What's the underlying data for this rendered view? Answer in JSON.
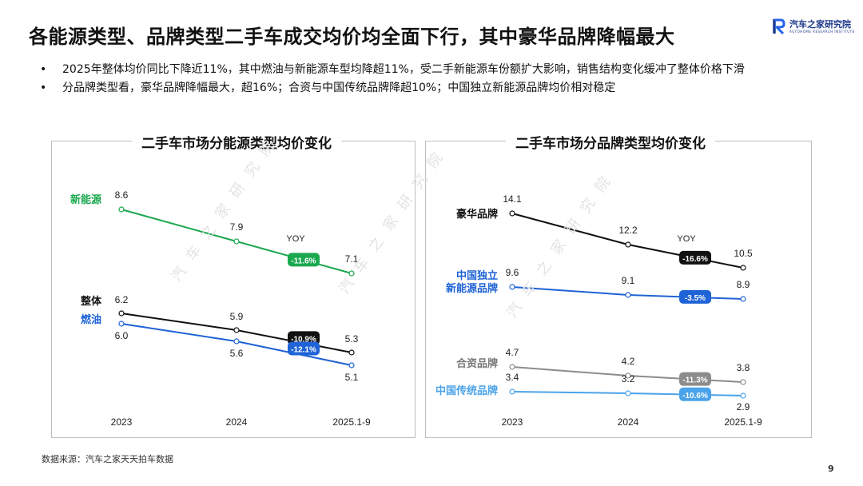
{
  "header": {
    "title": "各能源类型、品牌类型二手车成交均价均全面下行，其中豪华品牌降幅最大",
    "logo_name": "汽车之家研究院",
    "logo_sub": "AUTOHOME RESEARCH INSTITUTE"
  },
  "bullets": [
    "2025年整体均价同比下降近11%，其中燃油与新能源车型均降超11%，受二手新能源车份额扩大影响，销售结构变化缓冲了整体价格下滑",
    "分品牌类型看，豪华品牌降幅最大，超16%；合资与中国传统品牌降超10%；中国独立新能源品牌均价相对稳定"
  ],
  "watermark": "汽车之家研究院",
  "footer": {
    "source": "数据来源：汽车之家天天拍车数据",
    "page": "9"
  },
  "colors": {
    "green": "#1aa84f",
    "black": "#111111",
    "blue": "#1f63d6",
    "gray": "#8c8c8c",
    "light_blue": "#4aa3ea"
  },
  "chart_data": [
    {
      "type": "line",
      "title": "二手车市场分能源类型均价变化",
      "categories": [
        "2023",
        "2024",
        "2025.1-9"
      ],
      "yoy_label": "YOY",
      "series": [
        {
          "name": "新能源",
          "values": [
            8.6,
            7.9,
            7.1
          ],
          "yoy": "-11.6%",
          "color": "#1aa84f",
          "label_color": "#1aa84f"
        },
        {
          "name": "整体",
          "values": [
            6.2,
            5.9,
            5.3
          ],
          "yoy": "-10.9%",
          "color": "#111111",
          "label_color": "#111111"
        },
        {
          "name": "燃油",
          "values": [
            6.0,
            5.6,
            5.1
          ],
          "yoy": "-12.1%",
          "color": "#1f63d6",
          "label_color": "#1f63d6"
        }
      ]
    },
    {
      "type": "line",
      "title": "二手车市场分品牌类型均价变化",
      "categories": [
        "2023",
        "2024",
        "2025.1-9"
      ],
      "yoy_label": "YOY",
      "series": [
        {
          "name": "豪华品牌",
          "values": [
            14.1,
            12.2,
            10.5
          ],
          "yoy": "-16.6%",
          "color": "#111111",
          "label_color": "#111111"
        },
        {
          "name": "中国独立\n新能源品牌",
          "values": [
            9.6,
            9.1,
            8.9
          ],
          "yoy": "-3.5%",
          "color": "#1f63d6",
          "label_color": "#1f63d6"
        },
        {
          "name": "合资品牌",
          "values": [
            4.7,
            4.2,
            3.8
          ],
          "yoy": "-11.3%",
          "color": "#8c8c8c",
          "label_color": "#777777"
        },
        {
          "name": "中国传统品牌",
          "values": [
            3.4,
            3.2,
            2.9
          ],
          "yoy": "-10.6%",
          "color": "#4aa3ea",
          "label_color": "#4aa3ea"
        }
      ]
    }
  ]
}
